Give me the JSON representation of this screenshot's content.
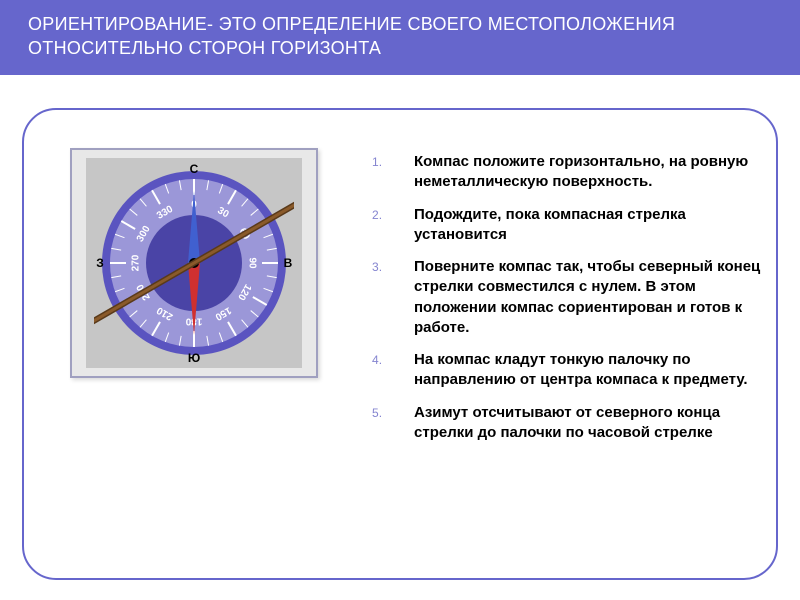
{
  "header": {
    "title": "ОРИЕНТИРОВАНИЕ- ЭТО ОПРЕДЕЛЕНИЕ СВОЕГО МЕСТОПОЛОЖЕНИЯ ОТНОСИТЕЛЬНО СТОРОН ГОРИЗОНТА",
    "bg_color": "#6666cc",
    "text_color": "#ffffff",
    "fontsize": 18
  },
  "frame": {
    "border_color": "#6666cc",
    "border_radius": 34
  },
  "compass": {
    "outer_bg": "#e8e8e8",
    "inner_bg": "#c6c6c6",
    "face_outer": "#5a54c0",
    "face_band": "#9b97d8",
    "face_inner": "#4a44a6",
    "tick_color": "#ffffff",
    "labels": {
      "north": "С",
      "east": "В",
      "south": "Ю",
      "west": "З"
    },
    "degree_labels": [
      "0",
      "30",
      "60",
      "90",
      "120",
      "150",
      "180",
      "210",
      "240",
      "270",
      "300",
      "330"
    ],
    "needle_north_color": "#4060d0",
    "needle_south_color": "#d03030",
    "pivot_color": "#000000",
    "stick_color": "#5a3a1a",
    "stick_angle_deg": -30
  },
  "instructions": {
    "item_fontsize": 15,
    "number_color": "#8585d0",
    "text_color": "#000000",
    "items": [
      "Компас положите горизонтально, на ровную неметаллическую поверхность.",
      "Подождите, пока компасная стрелка установится",
      "Поверните компас так, чтобы северный конец стрелки совместился с нулем. В этом положении компас сориентирован и готов к работе.",
      "На компас кладут тонкую палочку по направлению от центра компаса к предмету.",
      "Азимут отсчитывают от северного конца стрелки до палочки по часовой стрелке"
    ]
  }
}
